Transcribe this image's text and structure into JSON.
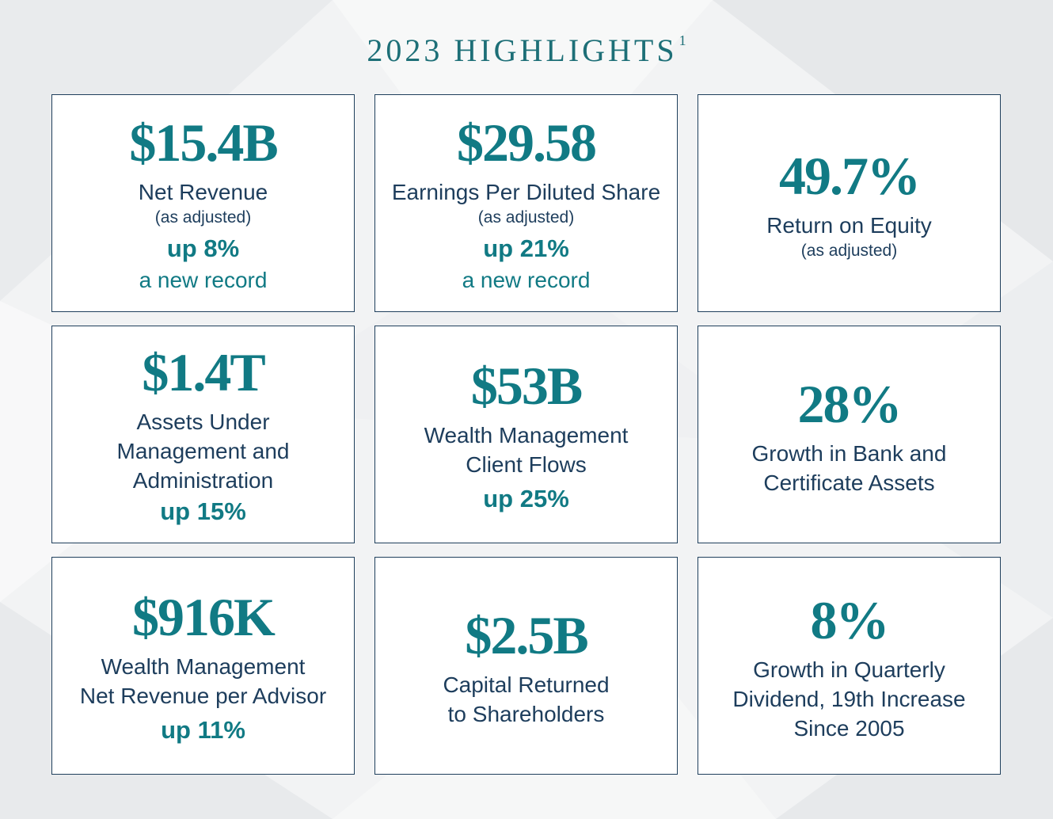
{
  "title": "2023 HIGHLIGHTS",
  "title_footnote": "1",
  "colors": {
    "accent": "#117a84",
    "text": "#1d3d5c",
    "border": "#1f3f5c"
  },
  "cards": [
    {
      "value": "$15.4B",
      "label_lines": [
        "Net Revenue"
      ],
      "sub": "(as adjusted)",
      "change": "up 8%",
      "note": "a new record"
    },
    {
      "value": "$29.58",
      "label_lines": [
        "Earnings Per Diluted Share"
      ],
      "sub": "(as adjusted)",
      "change": "up 21%",
      "note": "a new record"
    },
    {
      "value": "49.7%",
      "label_lines": [
        "Return on Equity"
      ],
      "sub": "(as adjusted)"
    },
    {
      "value": "$1.4T",
      "label_lines": [
        "Assets Under",
        "Management and",
        "Administration"
      ],
      "change": "up 15%"
    },
    {
      "value": "$53B",
      "label_lines": [
        "Wealth Management",
        "Client Flows"
      ],
      "change": "up 25%"
    },
    {
      "value": "28%",
      "label_lines": [
        "Growth in Bank and",
        "Certificate Assets"
      ]
    },
    {
      "value": "$916K",
      "label_lines": [
        "Wealth Management",
        "Net Revenue per Advisor"
      ],
      "change": "up 11%"
    },
    {
      "value": "$2.5B",
      "label_lines": [
        "Capital Returned",
        "to Shareholders"
      ]
    },
    {
      "value": "8%",
      "label_lines": [
        "Growth in Quarterly",
        "Dividend, 19th Increase",
        "Since 2005"
      ]
    }
  ]
}
